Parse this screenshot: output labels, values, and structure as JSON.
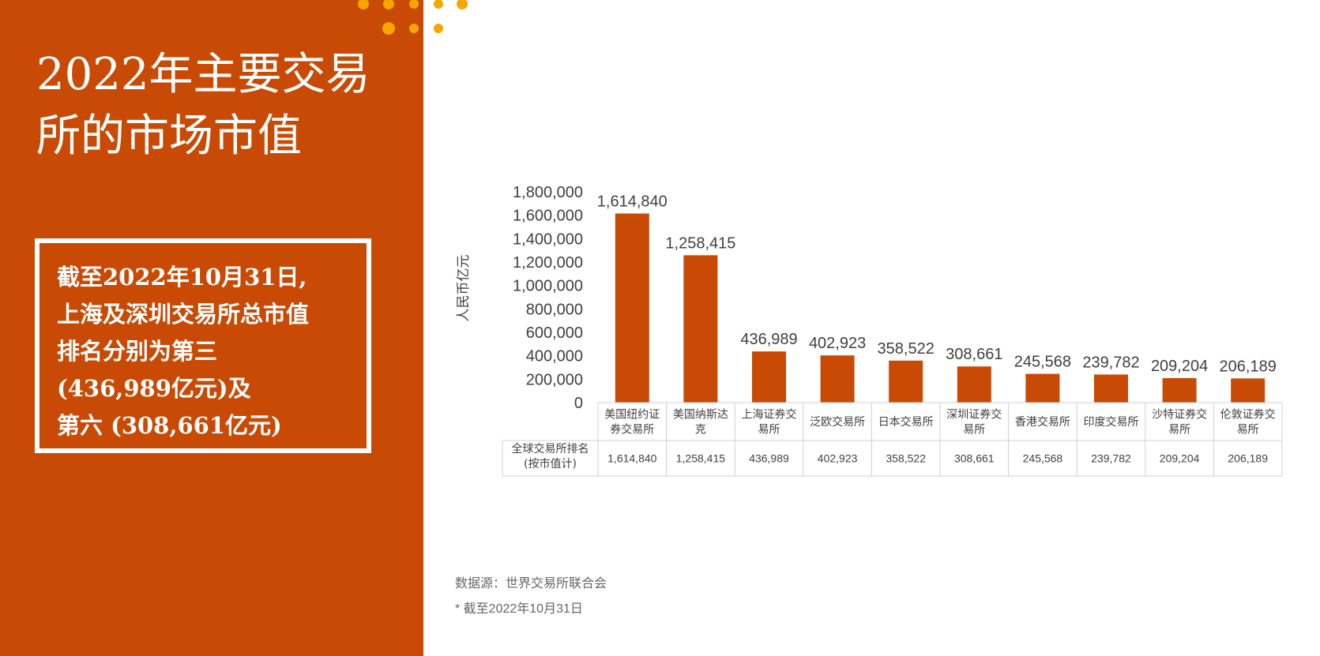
{
  "title_lines": [
    "2022年主要交易",
    "所的市场市值"
  ],
  "callout_lines": [
    "截至2022年10月31日,",
    "上海及深圳交易所总市值",
    "排名分别为第三",
    "(436,989亿元)及",
    "第六 (308,661亿元)"
  ],
  "colors": {
    "accent": "#c84a04",
    "bar": "#c84a04",
    "dots": "#f5a700"
  },
  "chart_data": {
    "type": "bar",
    "ylabel": "人民币亿元",
    "ylim": [
      0,
      1800000
    ],
    "yticks": [
      "1,800,000",
      "1,600,000",
      "1,400,000",
      "1,200,000",
      "1,000,000",
      "800,000",
      "600,000",
      "400,000",
      "200,000",
      "0"
    ],
    "categories": [
      "美国纽约证券交易所",
      "美国纳斯达克",
      "上海证券交易所",
      "泛欧交易所",
      "日本交易所",
      "深圳证券交易所",
      "香港交易所",
      "印度交易所",
      "沙特证券交易所",
      "伦敦证券交易所"
    ],
    "category_label_lines": [
      [
        "美国纽约证",
        "券交易所"
      ],
      [
        "美国纳斯达",
        "克"
      ],
      [
        "上海证券交",
        "易所"
      ],
      [
        "泛欧交易所"
      ],
      [
        "日本交易所"
      ],
      [
        "深圳证券交",
        "易所"
      ],
      [
        "香港交易所"
      ],
      [
        "印度交易所"
      ],
      [
        "沙特证券交",
        "易所"
      ],
      [
        "伦敦证券交",
        "易所"
      ]
    ],
    "values": [
      1614840,
      1258415,
      436989,
      402923,
      358522,
      308661,
      245568,
      239782,
      209204,
      206189
    ],
    "value_labels": [
      "1,614,840",
      "1,258,415",
      "436,989",
      "402,923",
      "358,522",
      "308,661",
      "245,568",
      "239,782",
      "209,204",
      "206,189"
    ],
    "table_row_header": [
      "全球交易所排名",
      "(按市值计)"
    ]
  },
  "source_note": "数据源：世界交易所联合会",
  "date_note": "*  截至2022年10月31日"
}
